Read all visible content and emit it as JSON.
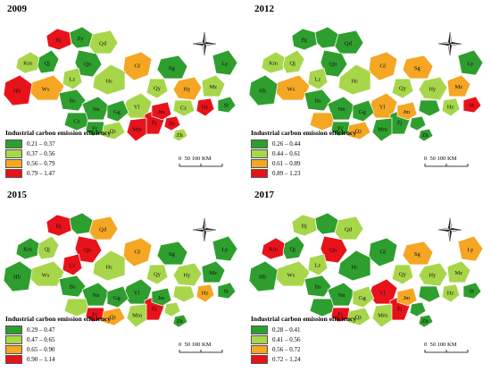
{
  "colors": {
    "class1": "#2e9e2e",
    "class2": "#a8d64a",
    "class3": "#f5a623",
    "class4": "#e8121b",
    "border": "#ffffff"
  },
  "legend_title": "Industrial carbon emission efficiency",
  "scale": {
    "ticks": [
      "0",
      "50",
      "100 KM"
    ]
  },
  "panels": [
    {
      "year": "2009",
      "classes": [
        "0.21 – 0.37",
        "0.37 – 0.56",
        "0.56 – 0.79",
        "0.79 – 1.47"
      ],
      "labels": {
        "Bj": "Bj",
        "Cz": "Cz",
        "Km": "Km",
        "Zy": "Zy",
        "Qj": "Qj",
        "Qd": "Qd",
        "Qn": "Qn",
        "Gl": "Gl",
        "Hc": "Hc",
        "Lz": "Lz",
        "Ws": "Ws",
        "Hh": "Hh",
        "Bs": "Bs",
        "Yl": "Yl",
        "Nn": "Nn",
        "Gg": "Gg",
        "Mm": "Mm",
        "Qz": "Qz",
        "Fc": "Fc",
        "Zj": "Zj",
        "Sg": "Sg",
        "Hy": "Hy",
        "Mz": "Mz",
        "Ly": "Ly",
        "Cz2": "Cz",
        "Qy": "Qy",
        "Jm": "Jm",
        "Zs": "Zs",
        "Zh": "Zh",
        "Hz": "Hz",
        "St": "St"
      }
    },
    {
      "year": "2012",
      "classes": [
        "0.26 – 0.44",
        "0.44 – 0.61",
        "0.61 – 0.89",
        "0.89 – 1.23"
      ],
      "labels": {
        "Bj": "Bj",
        "Km": "Km",
        "Qj": "Qj",
        "Qd": "Qd",
        "Qn": "Qn",
        "Gl": "Gl",
        "Hc": "Hc",
        "Lz": "Lz",
        "Ws": "Ws",
        "Hh": "Hh",
        "Bs": "Bs",
        "Yl": "Yl",
        "Nn": "Nn",
        "Gg": "Gg",
        "Mm": "Mm",
        "Qz": "Qz",
        "Fc": "Fc",
        "Zj": "Zj",
        "Sg": "Sg",
        "Hy": "Hy",
        "Mz": "Mz",
        "Ly": "Ly",
        "Qy": "Qy",
        "Jm": "Jm",
        "Zh": "Zh",
        "Hz": "Hz",
        "St": "St"
      }
    },
    {
      "year": "2015",
      "classes": [
        "0.29 – 0.47",
        "0.47 – 0.65",
        "0.65 – 0.90",
        "0.90 – 1.14"
      ],
      "labels": {
        "Bj": "Bj",
        "Km": "Km",
        "Qj": "Qj",
        "Qd": "Qd",
        "Qn": "Qn",
        "Gl": "Gl",
        "Hc": "Hc",
        "Lz": "Lz",
        "Ws": "Ws",
        "Hh": "Hh",
        "Bs": "Bs",
        "Yl": "Yl",
        "Nn": "Nn",
        "Gg": "Gg",
        "Mm": "Mm",
        "Qz": "Qz",
        "Fc": "Fc",
        "Zj": "Zj",
        "Sg": "Sg",
        "Hy": "Hy",
        "Mz": "Mz",
        "Ly": "Ly",
        "Qy": "Qy",
        "Jm": "Jm",
        "Zh": "Zh",
        "Hz": "Hz",
        "St": "St"
      }
    },
    {
      "year": "2017",
      "classes": [
        "0.28 – 0.41",
        "0.41 – 0.56",
        "0.56 – 0.72",
        "0.72 – 1.24"
      ],
      "labels": {
        "Bj": "Bj",
        "Km": "Km",
        "Qj": "Qj",
        "Qd": "Qd",
        "Qn": "Qn",
        "Gl": "Gl",
        "Hc": "Hc",
        "Lz": "Lz",
        "Ws": "Ws",
        "Hh": "Hh",
        "Bs": "Bs",
        "Yl": "Yl",
        "Nn": "Nn",
        "Gg": "Gg",
        "Mm": "Mm",
        "Qz": "Qz",
        "Fc": "Fc",
        "Zj": "Zj",
        "Sg": "Sg",
        "Hy": "Hy",
        "Mz": "Mz",
        "Ly": "Ly",
        "Qy": "Qy",
        "Jm": "Jm",
        "Zh": "Zh",
        "Hz": "Hz",
        "St": "St"
      }
    }
  ],
  "region_classes": [
    [
      4,
      2,
      1,
      1,
      2,
      3,
      1,
      2,
      2,
      3,
      4,
      1,
      1,
      2,
      1,
      1,
      1,
      2,
      4,
      4,
      1,
      2,
      3,
      2,
      1,
      2,
      4,
      4,
      2,
      4,
      1
    ],
    [
      1,
      2,
      2,
      1,
      1,
      3,
      1,
      2,
      2,
      3,
      1,
      1,
      1,
      3,
      1,
      3,
      1,
      3,
      1,
      1,
      3,
      2,
      2,
      3,
      1,
      1,
      3,
      1,
      1,
      2,
      4
    ],
    [
      4,
      1,
      2,
      1,
      3,
      3,
      4,
      2,
      4,
      2,
      1,
      1,
      1,
      1,
      1,
      2,
      4,
      3,
      4,
      2,
      1,
      2,
      2,
      1,
      1,
      2,
      1,
      2,
      1,
      3,
      1
    ],
    [
      2,
      4,
      1,
      1,
      2,
      1,
      4,
      1,
      2,
      2,
      1,
      1,
      1,
      4,
      2,
      1,
      4,
      2,
      4,
      2,
      3,
      2,
      2,
      2,
      3,
      1,
      3,
      1,
      1,
      2,
      1
    ]
  ]
}
